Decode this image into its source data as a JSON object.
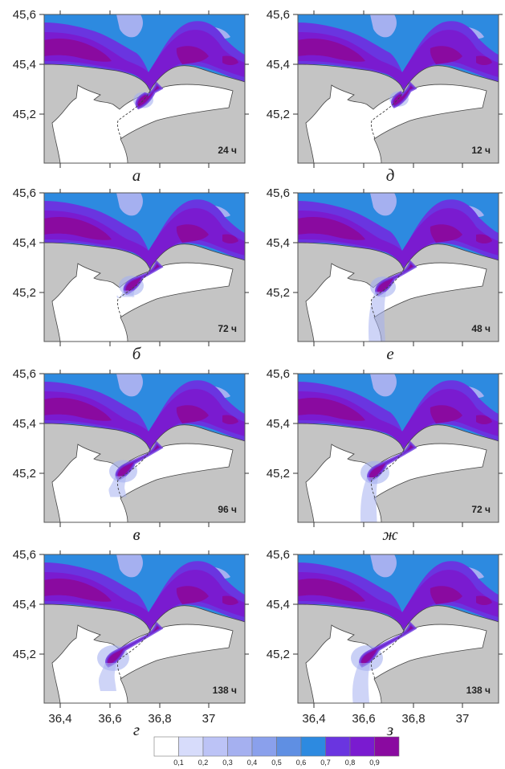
{
  "figure": {
    "y_ticks": [
      "45,6",
      "45,4",
      "45,2"
    ],
    "x_ticks": [
      "36,4",
      "36,6",
      "36,8",
      "37"
    ],
    "panels": [
      {
        "letter": "а",
        "time": "24 ч",
        "intrusion": 0.25,
        "plume": 0.0,
        "column": 0
      },
      {
        "letter": "б",
        "time": "72 ч",
        "intrusion": 0.55,
        "plume": 0.2,
        "column": 0
      },
      {
        "letter": "в",
        "time": "96 ч",
        "intrusion": 0.75,
        "plume": 0.4,
        "column": 0
      },
      {
        "letter": "г",
        "time": "138 ч",
        "intrusion": 1.0,
        "plume": 0.5,
        "column": 0
      },
      {
        "letter": "д",
        "time": "12 ч",
        "intrusion": 0.2,
        "plume": 0.0,
        "column": 1
      },
      {
        "letter": "е",
        "time": "48 ч",
        "intrusion": 0.6,
        "plume": 1.0,
        "column": 1
      },
      {
        "letter": "ж",
        "time": "72 ч",
        "intrusion": 0.8,
        "plume": 1.0,
        "column": 1
      },
      {
        "letter": "з",
        "time": "138 ч",
        "intrusion": 1.0,
        "plume": 0.8,
        "column": 1
      }
    ],
    "colorbar": {
      "labels": [
        "0,1",
        "0,2",
        "0,3",
        "0,4",
        "0,5",
        "0,6",
        "0,7",
        "0,8",
        "0,9"
      ],
      "colors": [
        "#ffffff",
        "#d7dcfb",
        "#bcc3f6",
        "#a5b0f0",
        "#8aa0ec",
        "#5f8fe3",
        "#2d8ae0",
        "#6a35e0",
        "#7a1bd0",
        "#8a0aa0"
      ]
    },
    "colors": {
      "land": "#c4c4c4",
      "coast_line": "#444444",
      "low_water": "#ffffff",
      "sea_blue": "#2d8ae0",
      "band_outer": "#6a35e0",
      "band_mid": "#7a1bd0",
      "band_core": "#8a0aa0",
      "haze": "#a5b0f0"
    }
  }
}
